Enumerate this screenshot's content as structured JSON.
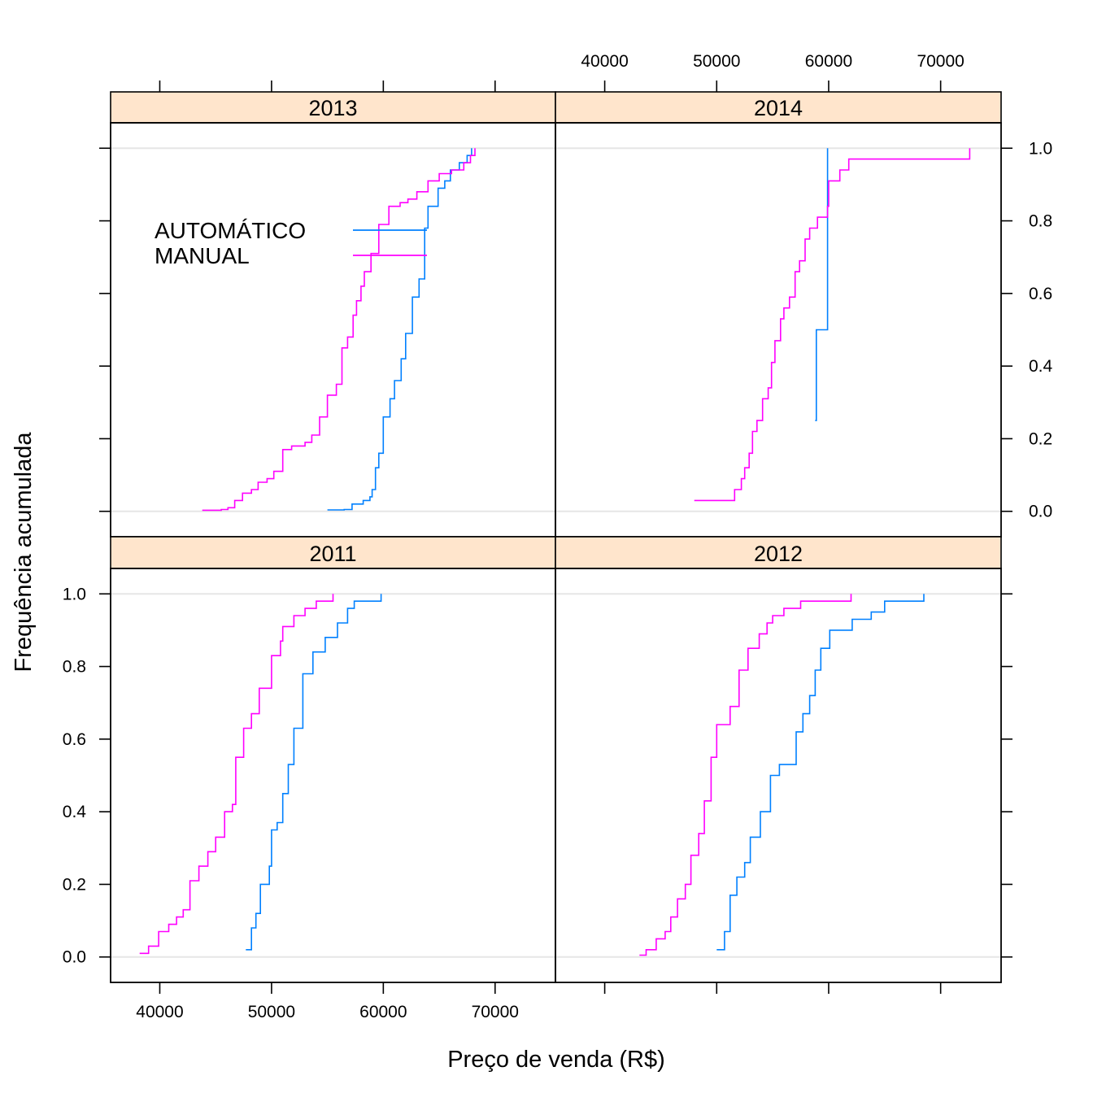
{
  "chart_data": {
    "type": "line",
    "step": true,
    "xlabel": "Preço de venda (R$)",
    "ylabel": "Frequência acumulada",
    "xlim": [
      35600,
      75400
    ],
    "ylim": [
      -0.07,
      1.07
    ],
    "x_ticks": [
      40000,
      50000,
      60000,
      70000
    ],
    "x_tick_labels": [
      "40000",
      "50000",
      "60000",
      "70000"
    ],
    "y_ticks": [
      0,
      0.2,
      0.4,
      0.6,
      0.8,
      1.0
    ],
    "y_tick_labels": [
      "0.0",
      "0.2",
      "0.4",
      "0.6",
      "0.8",
      "1.0"
    ],
    "grid_y_reference": [
      0,
      1
    ],
    "legend": {
      "placement": "inside top-left of 2013 panel",
      "entries": [
        {
          "label": "AUTOMÁTICO",
          "color": "#0080ff"
        },
        {
          "label": "MANUAL",
          "color": "#ff00ff"
        }
      ]
    },
    "colors": {
      "AUTOMÁTICO": "#0080ff",
      "MANUAL": "#ff00ff",
      "strip": "#ffe5cc",
      "reference": "#e6e6e6"
    },
    "panels": [
      {
        "strip": "2013",
        "series": [
          {
            "name": "AUTOMÁTICO",
            "points": [
              [
                55000,
                0.004
              ],
              [
                56500,
                0.005
              ],
              [
                57200,
                0.02
              ],
              [
                58200,
                0.03
              ],
              [
                58800,
                0.04
              ],
              [
                59000,
                0.06
              ],
              [
                59300,
                0.12
              ],
              [
                59600,
                0.16
              ],
              [
                60000,
                0.26
              ],
              [
                60600,
                0.31
              ],
              [
                61000,
                0.36
              ],
              [
                61600,
                0.42
              ],
              [
                62000,
                0.49
              ],
              [
                62600,
                0.59
              ],
              [
                63200,
                0.64
              ],
              [
                63700,
                0.78
              ],
              [
                64000,
                0.84
              ],
              [
                64900,
                0.89
              ],
              [
                65500,
                0.91
              ],
              [
                66000,
                0.94
              ],
              [
                66800,
                0.96
              ],
              [
                67500,
                0.98
              ],
              [
                67900,
                1.0
              ]
            ]
          },
          {
            "name": "MANUAL",
            "points": [
              [
                43800,
                0.003
              ],
              [
                45500,
                0.005
              ],
              [
                46100,
                0.01
              ],
              [
                46700,
                0.03
              ],
              [
                47400,
                0.05
              ],
              [
                48200,
                0.06
              ],
              [
                48800,
                0.08
              ],
              [
                49600,
                0.09
              ],
              [
                50200,
                0.11
              ],
              [
                51000,
                0.17
              ],
              [
                51800,
                0.18
              ],
              [
                53000,
                0.19
              ],
              [
                53600,
                0.21
              ],
              [
                54300,
                0.26
              ],
              [
                55000,
                0.32
              ],
              [
                55800,
                0.35
              ],
              [
                56300,
                0.45
              ],
              [
                56800,
                0.48
              ],
              [
                57300,
                0.54
              ],
              [
                57600,
                0.58
              ],
              [
                58000,
                0.62
              ],
              [
                58300,
                0.66
              ],
              [
                58900,
                0.71
              ],
              [
                59600,
                0.79
              ],
              [
                60500,
                0.84
              ],
              [
                61500,
                0.85
              ],
              [
                62200,
                0.86
              ],
              [
                63000,
                0.88
              ],
              [
                64000,
                0.91
              ],
              [
                65000,
                0.93
              ],
              [
                66100,
                0.94
              ],
              [
                67200,
                0.96
              ],
              [
                67800,
                0.98
              ],
              [
                68200,
                1.0
              ]
            ]
          }
        ]
      },
      {
        "strip": "2014",
        "series": [
          {
            "name": "AUTOMÁTICO",
            "points": [
              [
                58800,
                0.25
              ],
              [
                58900,
                0.5
              ],
              [
                59900,
                1.0
              ]
            ]
          },
          {
            "name": "MANUAL",
            "points": [
              [
                48000,
                0.03
              ],
              [
                51600,
                0.06
              ],
              [
                52200,
                0.09
              ],
              [
                52500,
                0.12
              ],
              [
                52900,
                0.16
              ],
              [
                53200,
                0.22
              ],
              [
                53600,
                0.25
              ],
              [
                54100,
                0.31
              ],
              [
                54600,
                0.34
              ],
              [
                54900,
                0.41
              ],
              [
                55200,
                0.47
              ],
              [
                55700,
                0.53
              ],
              [
                56000,
                0.56
              ],
              [
                56500,
                0.59
              ],
              [
                57000,
                0.66
              ],
              [
                57400,
                0.69
              ],
              [
                57900,
                0.75
              ],
              [
                58300,
                0.78
              ],
              [
                59000,
                0.81
              ],
              [
                59900,
                0.84
              ],
              [
                60000,
                0.91
              ],
              [
                61000,
                0.94
              ],
              [
                61800,
                0.97
              ],
              [
                72600,
                1.0
              ]
            ]
          }
        ]
      },
      {
        "strip": "2011",
        "series": [
          {
            "name": "AUTOMÁTICO",
            "points": [
              [
                47700,
                0.02
              ],
              [
                48200,
                0.08
              ],
              [
                48600,
                0.12
              ],
              [
                49000,
                0.2
              ],
              [
                49800,
                0.25
              ],
              [
                50000,
                0.35
              ],
              [
                50500,
                0.37
              ],
              [
                51000,
                0.45
              ],
              [
                51500,
                0.53
              ],
              [
                52000,
                0.63
              ],
              [
                52800,
                0.78
              ],
              [
                53700,
                0.84
              ],
              [
                54800,
                0.88
              ],
              [
                55900,
                0.92
              ],
              [
                56800,
                0.96
              ],
              [
                57400,
                0.98
              ],
              [
                59800,
                1.0
              ]
            ]
          },
          {
            "name": "MANUAL",
            "points": [
              [
                38200,
                0.01
              ],
              [
                39000,
                0.03
              ],
              [
                39900,
                0.07
              ],
              [
                40800,
                0.09
              ],
              [
                41500,
                0.11
              ],
              [
                42100,
                0.13
              ],
              [
                42700,
                0.21
              ],
              [
                43500,
                0.25
              ],
              [
                44300,
                0.29
              ],
              [
                45000,
                0.33
              ],
              [
                45800,
                0.4
              ],
              [
                46500,
                0.42
              ],
              [
                46800,
                0.55
              ],
              [
                47500,
                0.63
              ],
              [
                48200,
                0.67
              ],
              [
                48900,
                0.74
              ],
              [
                50000,
                0.83
              ],
              [
                50800,
                0.87
              ],
              [
                51000,
                0.91
              ],
              [
                52000,
                0.94
              ],
              [
                53000,
                0.96
              ],
              [
                54000,
                0.98
              ],
              [
                55500,
                1.0
              ]
            ]
          }
        ]
      },
      {
        "strip": "2012",
        "series": [
          {
            "name": "AUTOMÁTICO",
            "points": [
              [
                50000,
                0.02
              ],
              [
                50700,
                0.07
              ],
              [
                51200,
                0.17
              ],
              [
                51800,
                0.22
              ],
              [
                52500,
                0.26
              ],
              [
                53000,
                0.33
              ],
              [
                53900,
                0.4
              ],
              [
                54800,
                0.5
              ],
              [
                55600,
                0.53
              ],
              [
                57100,
                0.62
              ],
              [
                57700,
                0.67
              ],
              [
                58300,
                0.72
              ],
              [
                58800,
                0.79
              ],
              [
                59300,
                0.85
              ],
              [
                60100,
                0.9
              ],
              [
                62100,
                0.93
              ],
              [
                63800,
                0.95
              ],
              [
                65000,
                0.98
              ],
              [
                68500,
                1.0
              ]
            ]
          },
          {
            "name": "MANUAL",
            "points": [
              [
                43100,
                0.005
              ],
              [
                43700,
                0.02
              ],
              [
                44600,
                0.05
              ],
              [
                45400,
                0.07
              ],
              [
                45900,
                0.11
              ],
              [
                46500,
                0.16
              ],
              [
                47200,
                0.2
              ],
              [
                47700,
                0.28
              ],
              [
                48400,
                0.34
              ],
              [
                48900,
                0.43
              ],
              [
                49500,
                0.55
              ],
              [
                50000,
                0.64
              ],
              [
                51200,
                0.69
              ],
              [
                52000,
                0.79
              ],
              [
                52800,
                0.85
              ],
              [
                53800,
                0.89
              ],
              [
                54500,
                0.92
              ],
              [
                55000,
                0.94
              ],
              [
                56000,
                0.96
              ],
              [
                57500,
                0.98
              ],
              [
                62000,
                1.0
              ]
            ]
          }
        ]
      }
    ]
  }
}
